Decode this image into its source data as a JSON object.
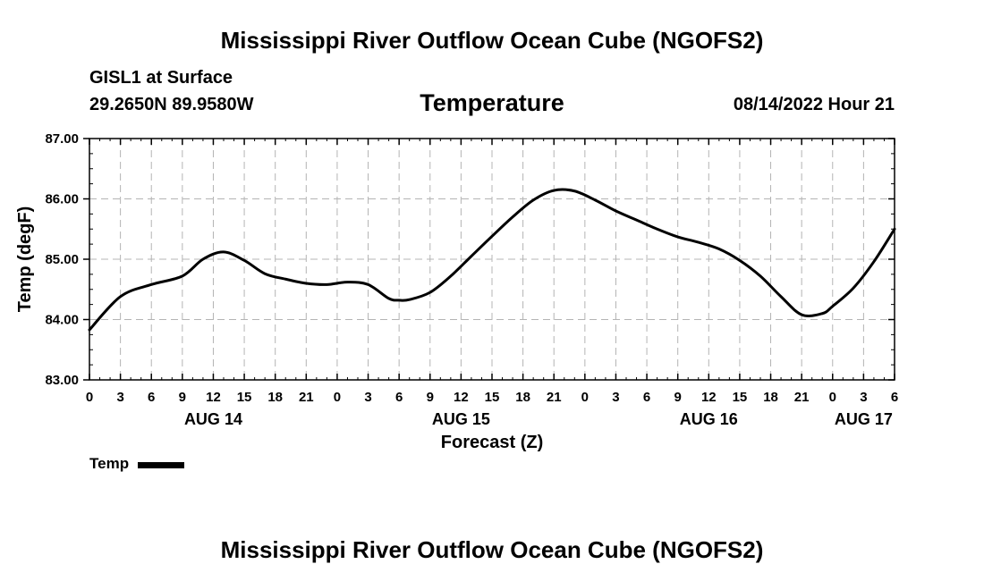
{
  "header": {
    "title": "Mississippi River Outflow Ocean Cube (NGOFS2)",
    "station": "GISL1 at Surface",
    "coordinates": "29.2650N  89.9580W",
    "variable": "Temperature",
    "datetime": "08/14/2022 Hour 21"
  },
  "footer": {
    "title": "Mississippi River Outflow Ocean Cube (NGOFS2)"
  },
  "legend": {
    "label": "Temp",
    "color": "#000000"
  },
  "chart_data": {
    "type": "line",
    "title": "Temperature",
    "xlabel": "Forecast (Z)",
    "ylabel": "Temp (degF)",
    "xlim": [
      0,
      78
    ],
    "ylim": [
      83.0,
      87.0
    ],
    "grid": true,
    "y_ticks": [
      83,
      84,
      85,
      86,
      87
    ],
    "y_tick_labels": [
      "83.00",
      "84.00",
      "85.00",
      "86.00",
      "87.00"
    ],
    "x_ticks": [
      0,
      3,
      6,
      9,
      12,
      15,
      18,
      21,
      24,
      27,
      30,
      33,
      36,
      39,
      42,
      45,
      48,
      51,
      54,
      57,
      60,
      63,
      66,
      69,
      72,
      75,
      78
    ],
    "x_tick_labels": [
      "0",
      "3",
      "6",
      "9",
      "12",
      "15",
      "18",
      "21",
      "0",
      "3",
      "6",
      "9",
      "12",
      "15",
      "18",
      "21",
      "0",
      "3",
      "6",
      "9",
      "12",
      "15",
      "18",
      "21",
      "0",
      "3",
      "6"
    ],
    "date_labels": [
      {
        "x": 12,
        "label": "AUG 14"
      },
      {
        "x": 36,
        "label": "AUG 15"
      },
      {
        "x": 60,
        "label": "AUG 16"
      },
      {
        "x": 75,
        "label": "AUG 17"
      }
    ],
    "series": [
      {
        "name": "Temp",
        "color": "#000000",
        "x": [
          0,
          3,
          6,
          9,
          11,
          13,
          15,
          17,
          19,
          21,
          23,
          25,
          27,
          29,
          30,
          31,
          33,
          35,
          37,
          39,
          41,
          43,
          45,
          47,
          49,
          51,
          53,
          55,
          57,
          59,
          61,
          63,
          65,
          67,
          69,
          71,
          72,
          74,
          76,
          78
        ],
        "values": [
          83.83,
          84.38,
          84.58,
          84.72,
          85.0,
          85.12,
          84.98,
          84.76,
          84.67,
          84.6,
          84.58,
          84.62,
          84.58,
          84.35,
          84.32,
          84.33,
          84.45,
          84.72,
          85.05,
          85.38,
          85.7,
          85.98,
          86.14,
          86.13,
          85.98,
          85.8,
          85.65,
          85.5,
          85.37,
          85.28,
          85.17,
          84.98,
          84.72,
          84.38,
          84.08,
          84.1,
          84.22,
          84.52,
          84.96,
          85.5
        ]
      }
    ]
  }
}
